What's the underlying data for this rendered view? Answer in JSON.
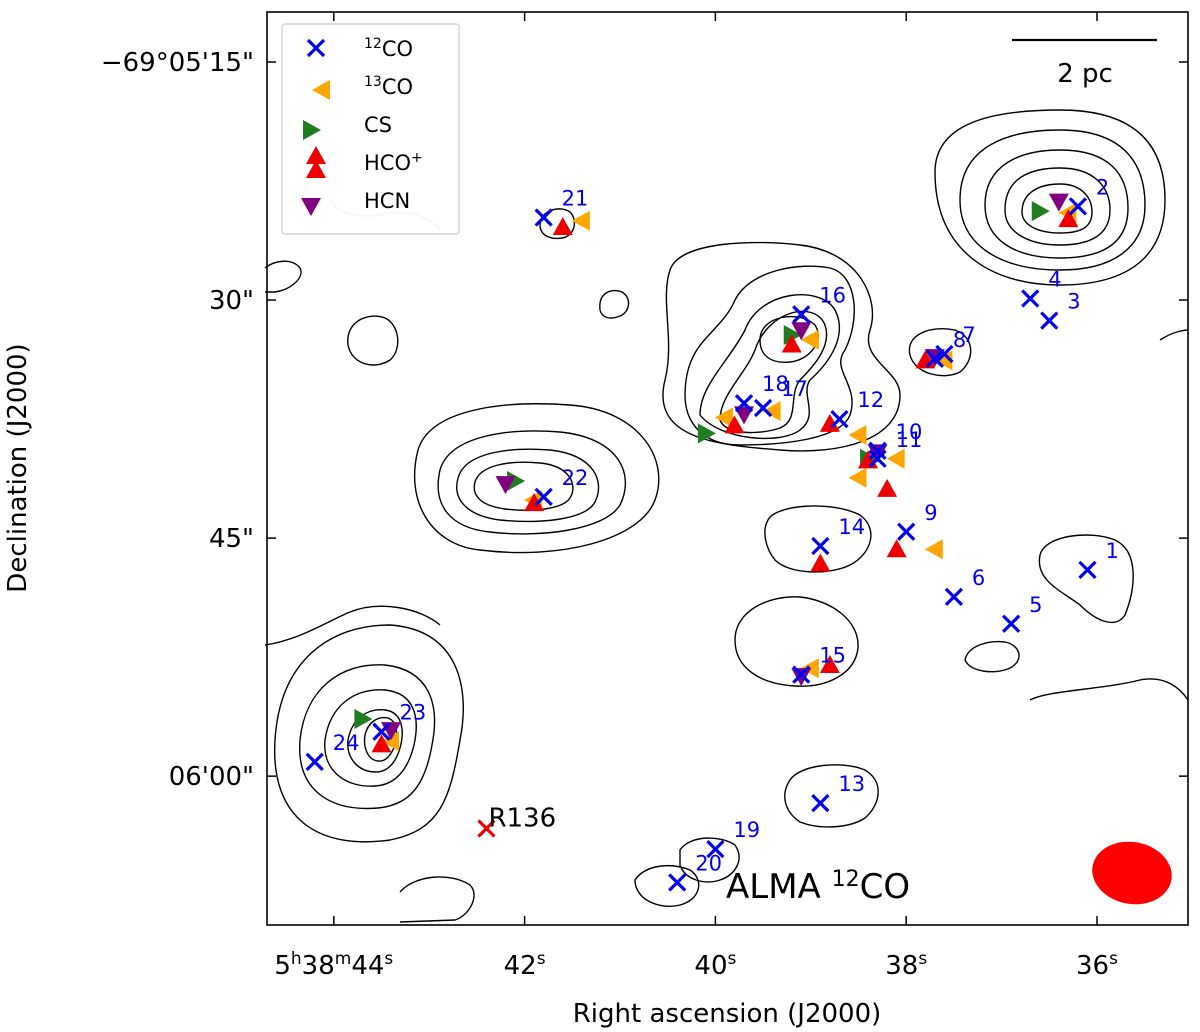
{
  "chart_data": {
    "type": "scatter",
    "title": "",
    "xlabel": "Right ascension (J2000)",
    "ylabel": "Declination (J2000)",
    "x_ticks": [
      {
        "h": "5",
        "m": "38",
        "s": "44",
        "full": true
      },
      {
        "s": "42"
      },
      {
        "s": "40"
      },
      {
        "s": "38"
      },
      {
        "s": "36"
      }
    ],
    "y_ticks": [
      "−69°05'15\"",
      "30\"",
      "45\"",
      "06'00\""
    ],
    "colors": {
      "co12": "#0000ee",
      "co13": "#ffa500",
      "cs": "#1e7d1e",
      "hcop": "#ee0000",
      "hcn": "#800080",
      "r136": "#ee0000",
      "beam": "#ff0000"
    },
    "legend": {
      "location": "upper-left",
      "entries": [
        {
          "key": "co12",
          "sup": "12",
          "text": "CO"
        },
        {
          "key": "co13",
          "sup": "13",
          "text": "CO"
        },
        {
          "key": "cs",
          "text": "CS"
        },
        {
          "key": "hcop",
          "text": "HCO",
          "sup_after": "+"
        },
        {
          "key": "hcn",
          "text": "HCN"
        }
      ]
    },
    "scale_bar": {
      "label": "2 pc"
    },
    "annotation": {
      "prefix": "ALMA ",
      "sup": "12",
      "text": "CO"
    },
    "reference_source": {
      "label": "R136",
      "ra_s": 42.4,
      "dec_as": 63.3
    },
    "sources_12co": [
      {
        "id": "1",
        "ra_s": 36.1,
        "dec_as": 47.0
      },
      {
        "id": "2",
        "ra_s": 36.2,
        "dec_as": 24.1
      },
      {
        "id": "3",
        "ra_s": 36.5,
        "dec_as": 31.3
      },
      {
        "id": "4",
        "ra_s": 36.7,
        "dec_as": 29.9
      },
      {
        "id": "5",
        "ra_s": 36.9,
        "dec_as": 50.4
      },
      {
        "id": "6",
        "ra_s": 37.5,
        "dec_as": 48.7
      },
      {
        "id": "7",
        "ra_s": 37.6,
        "dec_as": 33.4
      },
      {
        "id": "8",
        "ra_s": 37.7,
        "dec_as": 33.7
      },
      {
        "id": "9",
        "ra_s": 38.0,
        "dec_as": 44.6
      },
      {
        "id": "10",
        "ra_s": 38.3,
        "dec_as": 39.5
      },
      {
        "id": "11",
        "ra_s": 38.3,
        "dec_as": 40.0
      },
      {
        "id": "12",
        "ra_s": 38.7,
        "dec_as": 37.5
      },
      {
        "id": "13",
        "ra_s": 38.9,
        "dec_as": 61.7
      },
      {
        "id": "14",
        "ra_s": 38.9,
        "dec_as": 45.5
      },
      {
        "id": "15",
        "ra_s": 39.1,
        "dec_as": 53.6
      },
      {
        "id": "16",
        "ra_s": 39.1,
        "dec_as": 30.9
      },
      {
        "id": "17",
        "ra_s": 39.5,
        "dec_as": 36.8
      },
      {
        "id": "18",
        "ra_s": 39.7,
        "dec_as": 36.5
      },
      {
        "id": "19",
        "ra_s": 40.0,
        "dec_as": 64.6
      },
      {
        "id": "20",
        "ra_s": 40.4,
        "dec_as": 66.7
      },
      {
        "id": "21",
        "ra_s": 41.8,
        "dec_as": 24.8
      },
      {
        "id": "22",
        "ra_s": 41.8,
        "dec_as": 42.4
      },
      {
        "id": "23",
        "ra_s": 43.5,
        "dec_as": 57.2
      },
      {
        "id": "24",
        "ra_s": 44.2,
        "dec_as": 59.1
      }
    ],
    "sources_13co": [
      {
        "ra_s": 36.3,
        "dec_as": 24.5
      },
      {
        "ra_s": 37.6,
        "dec_as": 33.8
      },
      {
        "ra_s": 38.1,
        "dec_as": 40.0
      },
      {
        "ra_s": 38.5,
        "dec_as": 38.5
      },
      {
        "ra_s": 38.5,
        "dec_as": 41.2
      },
      {
        "ra_s": 37.7,
        "dec_as": 45.7
      },
      {
        "ra_s": 39.0,
        "dec_as": 53.2
      },
      {
        "ra_s": 39.0,
        "dec_as": 32.5
      },
      {
        "ra_s": 39.4,
        "dec_as": 37.0
      },
      {
        "ra_s": 39.9,
        "dec_as": 37.4
      },
      {
        "ra_s": 41.4,
        "dec_as": 25.0
      },
      {
        "ra_s": 41.9,
        "dec_as": 42.6
      },
      {
        "ra_s": 43.4,
        "dec_as": 57.8
      }
    ],
    "sources_cs": [
      {
        "ra_s": 36.6,
        "dec_as": 24.4
      },
      {
        "ra_s": 38.4,
        "dec_as": 40.0
      },
      {
        "ra_s": 39.2,
        "dec_as": 32.2
      },
      {
        "ra_s": 40.1,
        "dec_as": 38.4
      },
      {
        "ra_s": 42.1,
        "dec_as": 41.4
      },
      {
        "ra_s": 43.7,
        "dec_as": 56.4
      }
    ],
    "sources_hcop": [
      {
        "ra_s": 36.3,
        "dec_as": 24.9
      },
      {
        "ra_s": 37.8,
        "dec_as": 33.8
      },
      {
        "ra_s": 38.2,
        "dec_as": 41.9
      },
      {
        "ra_s": 38.1,
        "dec_as": 45.7
      },
      {
        "ra_s": 38.4,
        "dec_as": 40.1
      },
      {
        "ra_s": 38.8,
        "dec_as": 37.8
      },
      {
        "ra_s": 38.9,
        "dec_as": 46.6
      },
      {
        "ra_s": 38.8,
        "dec_as": 53.0
      },
      {
        "ra_s": 39.2,
        "dec_as": 32.8
      },
      {
        "ra_s": 39.8,
        "dec_as": 37.9
      },
      {
        "ra_s": 41.6,
        "dec_as": 25.4
      },
      {
        "ra_s": 41.9,
        "dec_as": 42.8
      },
      {
        "ra_s": 43.5,
        "dec_as": 58.0
      }
    ],
    "sources_hcn": [
      {
        "ra_s": 36.4,
        "dec_as": 23.8
      },
      {
        "ra_s": 37.7,
        "dec_as": 33.6
      },
      {
        "ra_s": 38.3,
        "dec_as": 39.6
      },
      {
        "ra_s": 39.1,
        "dec_as": 53.7
      },
      {
        "ra_s": 39.1,
        "dec_as": 31.9
      },
      {
        "ra_s": 39.7,
        "dec_as": 37.2
      },
      {
        "ra_s": 42.2,
        "dec_as": 41.6
      },
      {
        "ra_s": 43.4,
        "dec_as": 57.1
      }
    ]
  }
}
